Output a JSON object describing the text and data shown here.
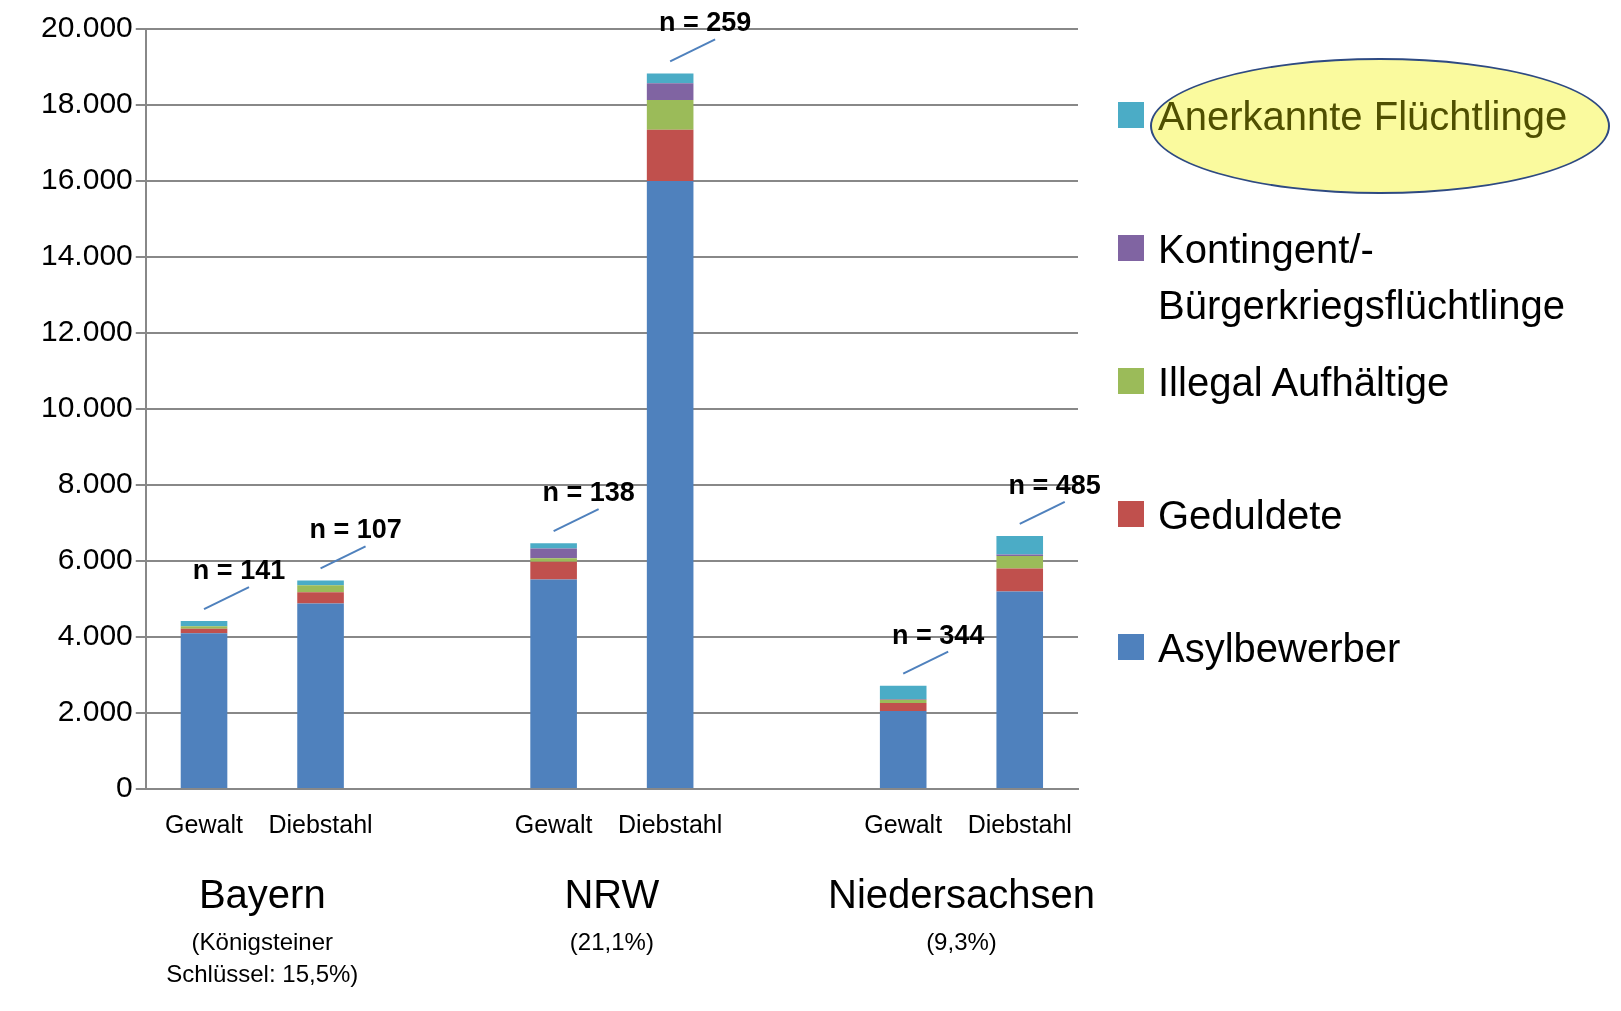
{
  "chart_data": {
    "type": "bar",
    "stacked": true,
    "categories": [
      "Gewalt",
      "Diebstahl",
      null,
      "Gewalt",
      "Diebstahl",
      null,
      "Gewalt",
      "Diebstahl"
    ],
    "series": [
      {
        "name": "Asylbewerber",
        "color": "#4f81bd",
        "values": [
          4100,
          4880,
          null,
          5510,
          16000,
          null,
          2050,
          5200
        ]
      },
      {
        "name": "Geduldete",
        "color": "#c0504d",
        "values": [
          120,
          300,
          null,
          470,
          1350,
          null,
          210,
          600
        ]
      },
      {
        "name": "Illegal Aufhältige",
        "color": "#9bbb59",
        "values": [
          60,
          180,
          null,
          90,
          780,
          null,
          90,
          330
        ]
      },
      {
        "name": "Kontingent/-Bürgerkriegsflüchtlinge",
        "color": "#8064a2",
        "values": [
          null,
          0,
          null,
          260,
          440,
          null,
          20,
          40
        ]
      },
      {
        "name": "Anerkannte Flüchtlinge",
        "color": "#4bacc6",
        "values": [
          140,
          130,
          null,
          140,
          260,
          null,
          350,
          490
        ]
      }
    ],
    "ylim": [
      0,
      20000
    ],
    "yticks": [
      {
        "value": 0,
        "label": "0"
      },
      {
        "value": 2000,
        "label": "2.000"
      },
      {
        "value": 4000,
        "label": "4.000"
      },
      {
        "value": 6000,
        "label": "6.000"
      },
      {
        "value": 8000,
        "label": "8.000"
      },
      {
        "value": 10000,
        "label": "10.000"
      },
      {
        "value": 12000,
        "label": "12.000"
      },
      {
        "value": 14000,
        "label": "14.000"
      },
      {
        "value": 16000,
        "label": "16.000"
      },
      {
        "value": 18000,
        "label": "18.000"
      },
      {
        "value": 20000,
        "label": "20.000"
      }
    ],
    "grid": "y",
    "legend": "right",
    "annotations": [
      "n = 141",
      "n = 107",
      "n = 138",
      "n = 259",
      "n = 344",
      "n = 485",
      "Bayern",
      "(Königsteiner Schlüssel: 15,5%)",
      "NRW",
      "(21,1%)",
      "Niedersachsen",
      "(9,3%)"
    ]
  }
}
